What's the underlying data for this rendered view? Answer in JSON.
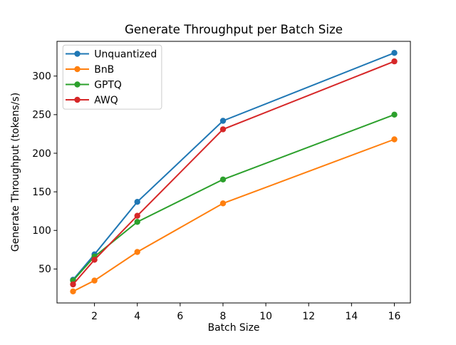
{
  "figure": {
    "background": "#ffffff"
  },
  "chart_data": {
    "type": "line",
    "title": "Generate Throughput per Batch Size",
    "xlabel": "Batch Size",
    "ylabel": "Generate Throughput (tokens/s)",
    "x": [
      1,
      2,
      4,
      8,
      16
    ],
    "series": [
      {
        "name": "Unquantized",
        "color": "#1f77b4",
        "values": [
          36,
          69,
          137,
          242,
          330
        ]
      },
      {
        "name": "BnB",
        "color": "#ff7f0e",
        "values": [
          21,
          35,
          72,
          135,
          218
        ]
      },
      {
        "name": "GPTQ",
        "color": "#2ca02c",
        "values": [
          35,
          66,
          111,
          166,
          250
        ]
      },
      {
        "name": "AWQ",
        "color": "#d62728",
        "values": [
          30,
          62,
          119,
          231,
          319
        ]
      }
    ],
    "xticks": [
      2,
      4,
      6,
      8,
      10,
      12,
      14,
      16
    ],
    "yticks": [
      50,
      100,
      150,
      200,
      250,
      300
    ],
    "xlim": [
      0.25,
      16.75
    ],
    "ylim": [
      6,
      345
    ],
    "grid": false,
    "legend_position": "upper left",
    "marker": "o",
    "line_width": 2,
    "marker_radius": 4.2
  }
}
